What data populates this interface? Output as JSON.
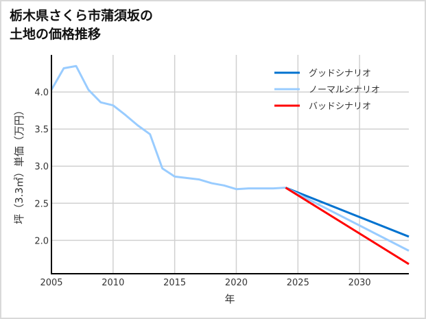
{
  "chart_data": {
    "type": "line",
    "title": "栃木県さくら市蒲須坂の\n土地の価格推移",
    "xlabel": "年",
    "ylabel": "坪（3.3㎡）単価（万円）",
    "xlim": [
      2005,
      2034
    ],
    "ylim": [
      1.55,
      4.5
    ],
    "grid": true,
    "legend_position": "top-right",
    "xticks": [
      2005,
      2010,
      2015,
      2020,
      2025,
      2030
    ],
    "yticks": [
      "2.0",
      "2.5",
      "3.0",
      "3.5",
      "4.0"
    ],
    "history": {
      "x": [
        2005,
        2006,
        2007,
        2008,
        2009,
        2010,
        2011,
        2012,
        2013,
        2014,
        2015,
        2016,
        2017,
        2018,
        2019,
        2020,
        2021,
        2022,
        2023,
        2024
      ],
      "y": [
        4.03,
        4.32,
        4.35,
        4.03,
        3.86,
        3.82,
        3.69,
        3.55,
        3.43,
        2.97,
        2.86,
        2.84,
        2.82,
        2.77,
        2.74,
        2.69,
        2.7,
        2.7,
        2.7,
        2.71
      ],
      "color": "#99ccff"
    },
    "series": [
      {
        "name": "グッドシナリオ",
        "x": [
          2024,
          2034
        ],
        "y": [
          2.71,
          2.05
        ],
        "color": "#0072cf"
      },
      {
        "name": "ノーマルシナリオ",
        "x": [
          2024,
          2034
        ],
        "y": [
          2.71,
          1.86
        ],
        "color": "#99ccff"
      },
      {
        "name": "バッドシナリオ",
        "x": [
          2024,
          2034
        ],
        "y": [
          2.71,
          1.68
        ],
        "color": "#ff0000"
      }
    ]
  }
}
